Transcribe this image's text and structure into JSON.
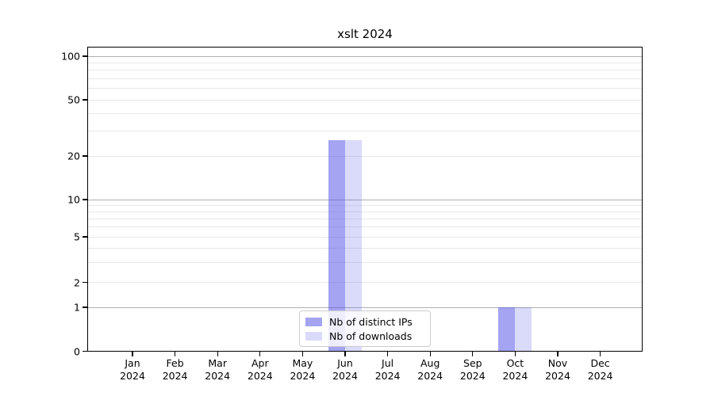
{
  "chart_data": {
    "type": "bar",
    "title": "xslt 2024",
    "categories": [
      {
        "label": "Jan",
        "sub": "2024"
      },
      {
        "label": "Feb",
        "sub": "2024"
      },
      {
        "label": "Mar",
        "sub": "2024"
      },
      {
        "label": "Apr",
        "sub": "2024"
      },
      {
        "label": "May",
        "sub": "2024"
      },
      {
        "label": "Jun",
        "sub": "2024"
      },
      {
        "label": "Jul",
        "sub": "2024"
      },
      {
        "label": "Aug",
        "sub": "2024"
      },
      {
        "label": "Sep",
        "sub": "2024"
      },
      {
        "label": "Oct",
        "sub": "2024"
      },
      {
        "label": "Nov",
        "sub": "2024"
      },
      {
        "label": "Dec",
        "sub": "2024"
      }
    ],
    "series": [
      {
        "name": "Nb of distinct IPs",
        "color": "rgba(80,80,232,0.52)",
        "color_hex_on_white": "#a8a8f0",
        "values": [
          0,
          0,
          0,
          0,
          0,
          26,
          0,
          0,
          0,
          1,
          0,
          0
        ]
      },
      {
        "name": "Nb of downloads",
        "color": "rgba(80,80,232,0.21)",
        "color_hex_on_white": "#dcdcf7",
        "values": [
          0,
          0,
          0,
          0,
          0,
          26,
          0,
          0,
          0,
          1,
          0,
          0
        ]
      }
    ],
    "yaxis": {
      "scale": "symlog",
      "ticks": [
        0,
        1,
        2,
        5,
        10,
        20,
        50,
        100
      ],
      "minor_ticks": [
        3,
        4,
        6,
        7,
        8,
        9,
        30,
        40,
        60,
        70,
        80,
        90
      ],
      "lim": [
        0,
        115
      ]
    },
    "xlabel": "",
    "ylabel": "",
    "grid": {
      "on": true,
      "major_values": [
        1,
        10,
        100
      ],
      "major_color": "#b0b0b0",
      "minor_color": "#e8e8e8"
    },
    "legend": {
      "position": "lower center"
    }
  }
}
